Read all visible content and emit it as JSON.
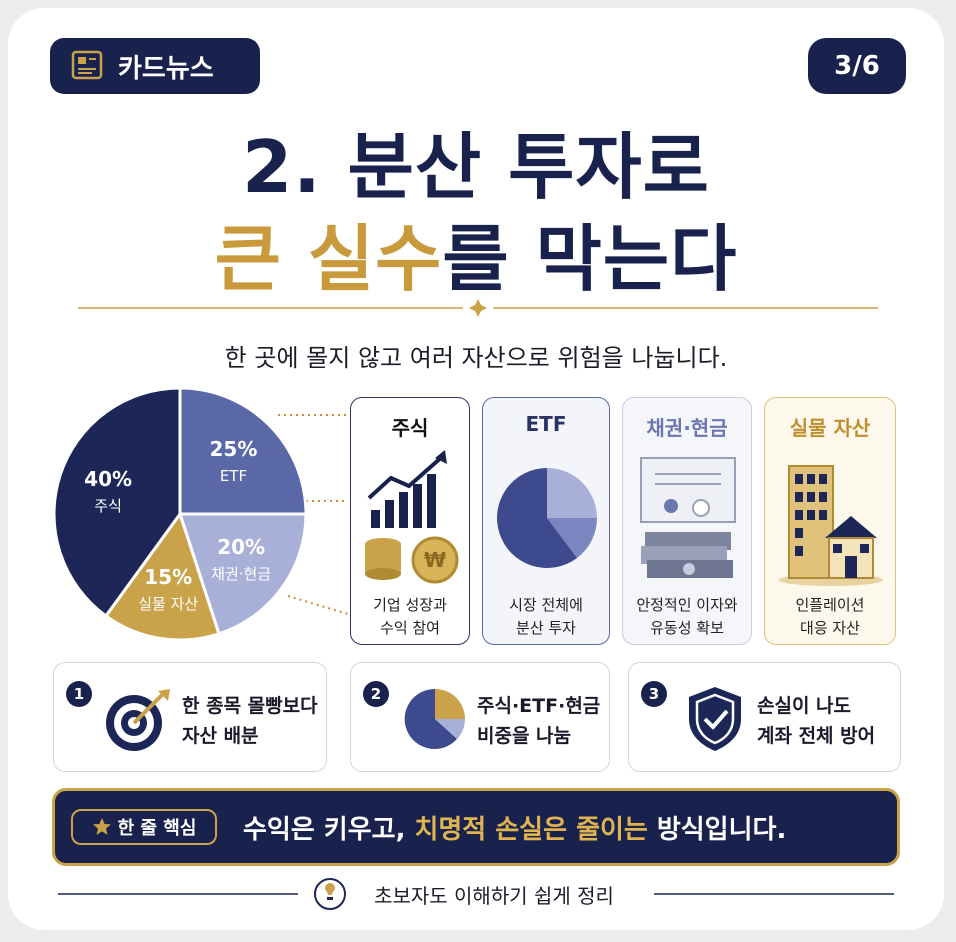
{
  "header": {
    "badge": "카드뉴스",
    "page": "3/6"
  },
  "title": {
    "line1": "2. 분산 투자로",
    "line2_highlight": "큰 실수",
    "line2_rest": "를 막는다"
  },
  "subtitle": "한 곳에 몰지 않고 여러 자산으로 위험을 나눕니다.",
  "chart_data": {
    "type": "pie",
    "categories": [
      "ETF",
      "채권·현금",
      "실물 자산",
      "주식"
    ],
    "values": [
      25,
      20,
      15,
      40
    ],
    "value_labels": [
      "25%",
      "20%",
      "15%",
      "40%"
    ],
    "colors": [
      "#5a68a8",
      "#a8b0d8",
      "#c9a24a",
      "#1c2757"
    ]
  },
  "cards": [
    {
      "title": "주식",
      "desc": [
        "기업 성장과",
        "수익 참여"
      ]
    },
    {
      "title": "ETF",
      "desc": [
        "시장 전체에",
        "분산 투자"
      ]
    },
    {
      "title": "채권·현금",
      "desc": [
        "안정적인 이자와",
        "유동성 확보"
      ]
    },
    {
      "title": "실물 자산",
      "desc": [
        "인플레이션",
        "대응 자산"
      ]
    }
  ],
  "points": [
    {
      "number": "1",
      "text": [
        "한 종목 몰빵보다",
        "자산 배분"
      ]
    },
    {
      "number": "2",
      "text": [
        "주식·ETF·현금",
        "비중을 나눔"
      ]
    },
    {
      "number": "3",
      "text": [
        "손실이 나도",
        "계좌 전체 방어"
      ]
    }
  ],
  "key": {
    "badge": "한 줄 핵심",
    "parts": [
      "수익은 키우고,",
      "치명적 손실은 줄이는",
      "방식입니다."
    ]
  },
  "footer": "초보자도 이해하기 쉽게 정리"
}
